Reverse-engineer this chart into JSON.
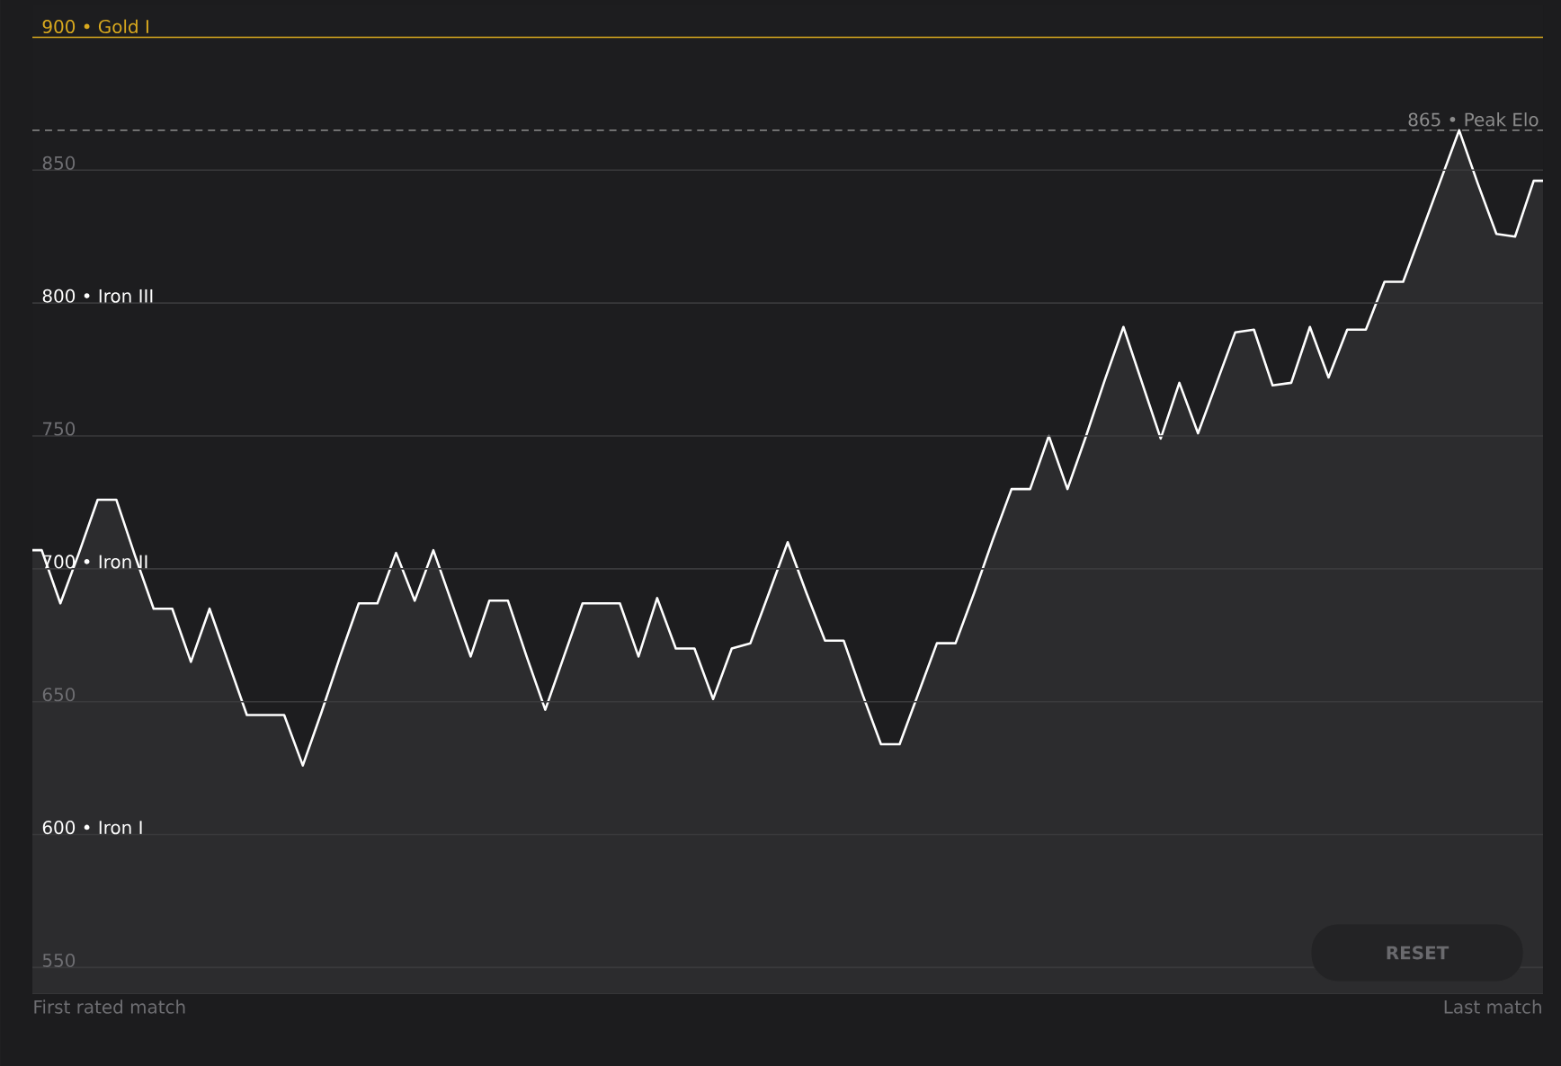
{
  "chart_data": {
    "type": "area",
    "categories": [
      null,
      null,
      null,
      null,
      null,
      null,
      null,
      null,
      null,
      null,
      null,
      null,
      null,
      null,
      null,
      null,
      null,
      null,
      null,
      null,
      null,
      null,
      null,
      null,
      null,
      null,
      null,
      null,
      null,
      null,
      null,
      null,
      null,
      null,
      null,
      null,
      null,
      null,
      null,
      null,
      null,
      null,
      null,
      null,
      null,
      null,
      null,
      null,
      null,
      null,
      null,
      null,
      null,
      null,
      null,
      null,
      null,
      null,
      null,
      null,
      null,
      null,
      null,
      null,
      null,
      null,
      null,
      null,
      null,
      null,
      null,
      null,
      null,
      null,
      null,
      null,
      null,
      null,
      null,
      null,
      null
    ],
    "series": [
      {
        "color": "#2c2c2e",
        "values": [
          707,
          687,
          706,
          726,
          726,
          705,
          685,
          685,
          665,
          685,
          665,
          645,
          645,
          645,
          626,
          646,
          667,
          687,
          687,
          706,
          688,
          707,
          687,
          667,
          688,
          688,
          667,
          647,
          667,
          687,
          687,
          687,
          667,
          689,
          670,
          670,
          651,
          670,
          672,
          691,
          710,
          691,
          673,
          673,
          653,
          634,
          634,
          653,
          672,
          672,
          691,
          711,
          730,
          730,
          750,
          730,
          750,
          771,
          791,
          770,
          749,
          770,
          751,
          770,
          789,
          790,
          769,
          770,
          791,
          772,
          790,
          790,
          808,
          808,
          827,
          846,
          865,
          845,
          826,
          825,
          846
        ]
      }
    ],
    "ylim": [
      540,
      912
    ],
    "yticks": [
      550,
      {
        "value": 600,
        "label": "600 • Iron I"
      },
      650,
      {
        "value": 700,
        "label": "700 • Iron II"
      },
      750,
      {
        "value": 800,
        "label": "800 • Iron III"
      },
      850
    ],
    "grid": "y",
    "ref_lines": [
      {
        "axis": "y",
        "value": 865,
        "label": "865 • Peak Elo",
        "color": "#8c8c8c",
        "line_style": "dashed"
      },
      {
        "axis": "y",
        "value": 900,
        "label": "900 • Gold I",
        "color": "#d9a91e",
        "line_style": "solid"
      }
    ],
    "annotations": [
      "First rated match",
      "Last match",
      "RESET"
    ]
  }
}
